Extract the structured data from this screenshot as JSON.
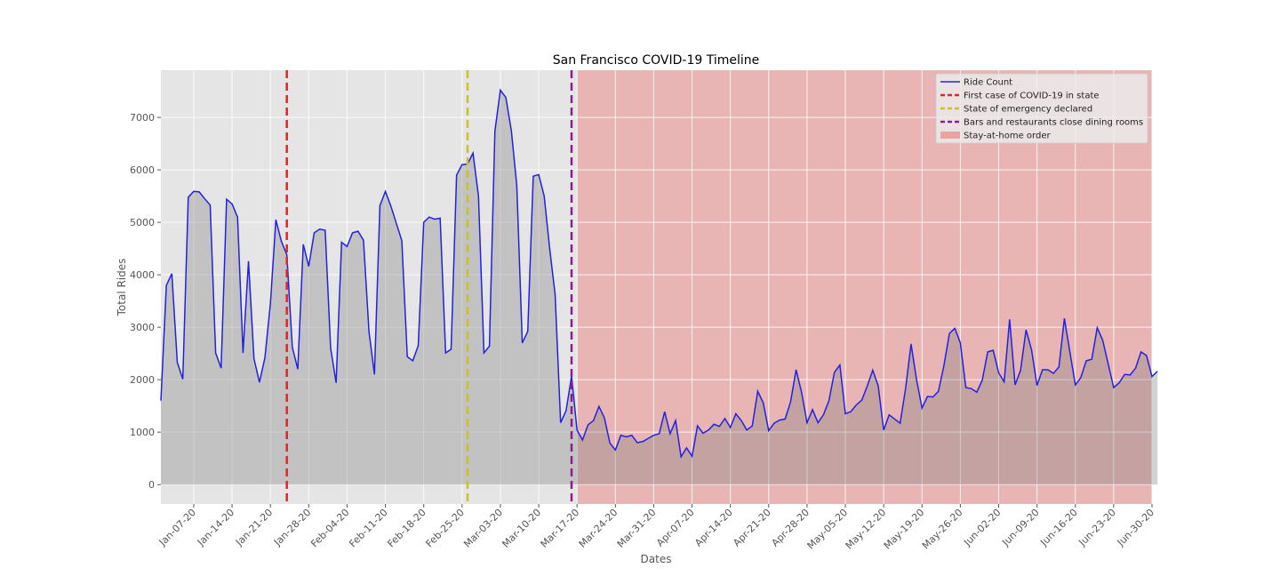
{
  "chart_data": {
    "type": "line",
    "title": "San Francisco COVID-19 Timeline",
    "xlabel": "Dates",
    "ylabel": "Total Rides",
    "ylim": [
      -370,
      7900
    ],
    "yticks": [
      0,
      1000,
      2000,
      3000,
      4000,
      5000,
      6000,
      7000
    ],
    "xlim": [
      "2020-01-01",
      "2020-06-30"
    ],
    "xticks": [
      "Jan-07-20",
      "Jan-14-20",
      "Jan-21-20",
      "Jan-28-20",
      "Feb-04-20",
      "Feb-11-20",
      "Feb-18-20",
      "Feb-25-20",
      "Mar-03-20",
      "Mar-10-20",
      "Mar-17-20",
      "Mar-24-20",
      "Mar-31-20",
      "Apr-07-20",
      "Apr-14-20",
      "Apr-21-20",
      "Apr-28-20",
      "May-05-20",
      "May-12-20",
      "May-19-20",
      "May-26-20",
      "Jun-02-20",
      "Jun-09-20",
      "Jun-16-20",
      "Jun-23-20",
      "Jun-30-20"
    ],
    "grid": true,
    "legend_position": "top-right",
    "series": [
      {
        "name": "Ride Count",
        "color": "#2222dd",
        "start_date": "2020-01-01",
        "values": [
          1600,
          3800,
          4020,
          2330,
          2010,
          5480,
          5590,
          5580,
          5450,
          5330,
          2510,
          2220,
          5440,
          5350,
          5100,
          2510,
          4260,
          2400,
          1950,
          2420,
          3450,
          5050,
          4640,
          4380,
          2620,
          2200,
          4580,
          4160,
          4800,
          4870,
          4850,
          2600,
          1940,
          4620,
          4540,
          4800,
          4830,
          4660,
          2920,
          2100,
          5320,
          5590,
          5310,
          4980,
          4650,
          2440,
          2360,
          2650,
          5000,
          5100,
          5060,
          5080,
          2510,
          2580,
          5900,
          6100,
          6110,
          6320,
          5500,
          2510,
          2640,
          6740,
          7520,
          7380,
          6750,
          5700,
          2700,
          2920,
          5880,
          5910,
          5500,
          4500,
          3620,
          1180,
          1410,
          2070,
          1040,
          850,
          1140,
          1220,
          1490,
          1270,
          790,
          660,
          940,
          910,
          940,
          800,
          820,
          880,
          940,
          970,
          1390,
          970,
          1220,
          530,
          700,
          540,
          1120,
          980,
          1040,
          1150,
          1110,
          1260,
          1090,
          1350,
          1220,
          1040,
          1120,
          1780,
          1560,
          1030,
          1170,
          1230,
          1250,
          1580,
          2190,
          1760,
          1180,
          1430,
          1180,
          1330,
          1600,
          2140,
          2280,
          1350,
          1390,
          1520,
          1610,
          1880,
          2180,
          1880,
          1040,
          1330,
          1250,
          1170,
          1830,
          2680,
          2000,
          1460,
          1680,
          1670,
          1780,
          2270,
          2880,
          2980,
          2700,
          1850,
          1830,
          1760,
          1990,
          2530,
          2560,
          2130,
          1960,
          3150,
          1900,
          2180,
          2950,
          2570,
          1890,
          2190,
          2190,
          2120,
          2240,
          3170,
          2530,
          1900,
          2040,
          2360,
          2390,
          2990,
          2750,
          2300,
          1850,
          1940,
          2100,
          2090,
          2220,
          2530,
          2460,
          2060,
          2160
        ]
      }
    ],
    "events": [
      {
        "type": "vline",
        "date": "2020-01-24",
        "label": "First case of COVID-19 in state",
        "color": "#e8221f"
      },
      {
        "type": "vline",
        "date": "2020-02-26",
        "label": "State of emergency declared",
        "color": "#c8c222"
      },
      {
        "type": "vline",
        "date": "2020-03-16",
        "label": "Bars and restaurants close dining rooms",
        "color": "#8e1c8e"
      },
      {
        "type": "span",
        "start": "2020-03-17",
        "end": "2020-06-30",
        "label": "Stay-at-home order",
        "color": "#e8a3a3"
      }
    ]
  }
}
